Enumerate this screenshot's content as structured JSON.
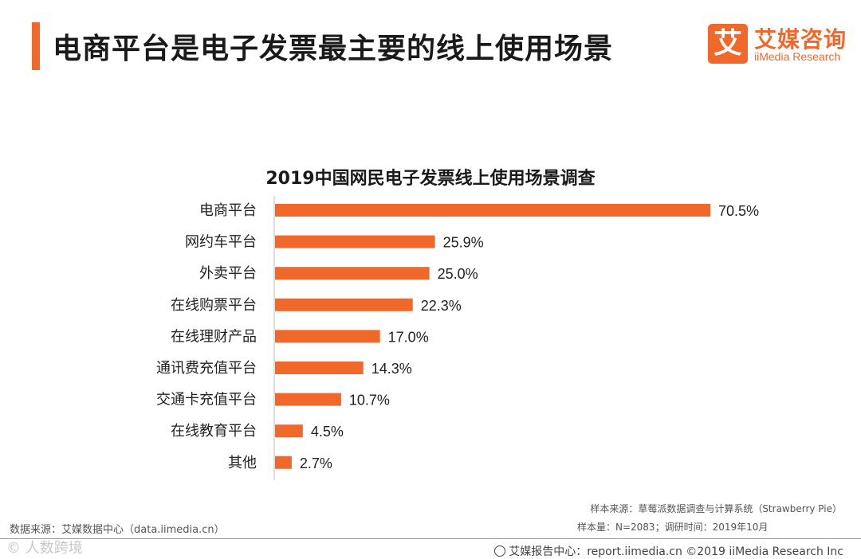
{
  "header": {
    "title": "电商平台是电子发票最主要的线上使用场景"
  },
  "logo": {
    "mark": "艾",
    "name_cn": "艾媒咨询",
    "name_en": "iiMedia Research"
  },
  "colors": {
    "accent": "#f0692a",
    "bar": "#f0692a",
    "axis": "#bbbbbb"
  },
  "chart_data": {
    "type": "bar",
    "orientation": "horizontal",
    "title": "2019中国网民电子发票线上使用场景调查",
    "categories": [
      "电商平台",
      "网约车平台",
      "外卖平台",
      "在线购票平台",
      "在线理财产品",
      "通讯费充值平台",
      "交通卡充值平台",
      "在线教育平台",
      "其他"
    ],
    "values": [
      70.5,
      25.9,
      25.0,
      22.3,
      17.0,
      14.3,
      10.7,
      4.5,
      2.7
    ],
    "labels": [
      "70.5%",
      "25.9%",
      "25.0%",
      "22.3%",
      "17.0%",
      "14.3%",
      "10.7%",
      "4.5%",
      "2.7%"
    ],
    "unit": "%",
    "xlim": [
      0,
      70.5
    ]
  },
  "source": {
    "left": "数据来源：艾媒数据中心（data.iimedia.cn）",
    "sample_source": "样本来源：草莓派数据调查与计算系统（Strawberry Pie）",
    "sample_size": "样本量：N=2083；调研时间：2019年10月"
  },
  "watermark": "© 人数跨境",
  "footer": {
    "text": "艾媒报告中心：report.iimedia.cn ©2019  iiMedia Research  Inc"
  }
}
